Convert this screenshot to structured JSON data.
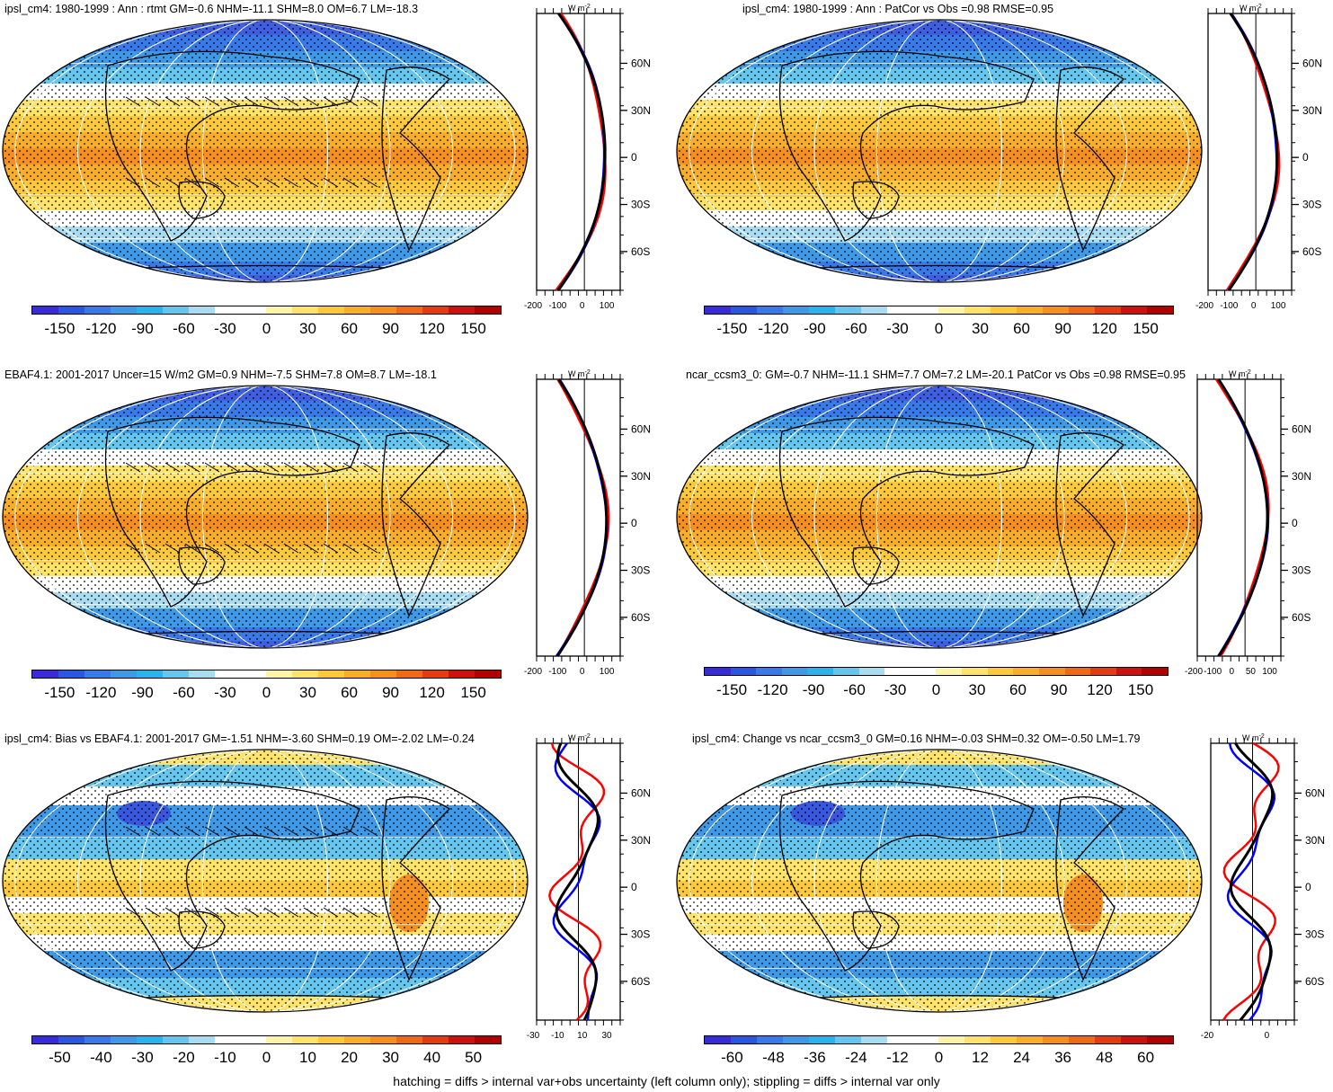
{
  "panels": [
    {
      "title": "ipsl_cm4: 1980-1999 : Ann : rtmt GM=-0.6 NHM=-11.1 SHM=8.0 OM=6.7 LM=-18.3",
      "colorbar": [
        "-150",
        "-120",
        "-90",
        "-60",
        "-30",
        "0",
        "30",
        "60",
        "90",
        "120",
        "150"
      ],
      "zonal_ticks": [
        "-200",
        "-100",
        "0",
        "100"
      ],
      "type": "mean",
      "hatched": true
    },
    {
      "title": "ipsl_cm4: 1980-1999 : Ann : PatCor vs Obs =0.98 RMSE=0.95",
      "colorbar": [
        "-150",
        "-120",
        "-90",
        "-60",
        "-30",
        "0",
        "30",
        "60",
        "90",
        "120",
        "150"
      ],
      "zonal_ticks": [
        "-200",
        "-100",
        "0",
        "100"
      ],
      "type": "mean",
      "hatched": false
    },
    {
      "title": "EBAF4.1: 2001-2017 Uncer=15 W/m2 GM=0.9 NHM=-7.5 SHM=7.8 OM=8.7 LM=-18.1",
      "colorbar": [
        "-150",
        "-120",
        "-90",
        "-60",
        "-30",
        "0",
        "30",
        "60",
        "90",
        "120",
        "150"
      ],
      "zonal_ticks": [
        "-200",
        "-100",
        "0",
        "100"
      ],
      "type": "mean",
      "hatched": true
    },
    {
      "title": "ncar_ccsm3_0: GM=-0.7 NHM=-11.1 SHM=7.7 OM=7.2 LM=-20.1 PatCor vs Obs =0.98 RMSE=0.95",
      "colorbar": [
        "-150",
        "-120",
        "-90",
        "-60",
        "-30",
        "0",
        "30",
        "60",
        "90",
        "120",
        "150"
      ],
      "zonal_ticks": [
        "-200",
        "-100",
        "0",
        "50",
        "100"
      ],
      "type": "mean",
      "hatched": false
    },
    {
      "title": "ipsl_cm4: Bias vs EBAF4.1: 2001-2017 GM=-1.51 NHM=-3.60 SHM=0.19 OM=-2.02 LM=-0.24",
      "colorbar": [
        "-50",
        "-40",
        "-30",
        "-20",
        "-10",
        "0",
        "10",
        "20",
        "30",
        "40",
        "50"
      ],
      "zonal_ticks": [
        "-30",
        "-10",
        "10",
        "30"
      ],
      "type": "diff",
      "hatched": true
    },
    {
      "title": "ipsl_cm4: Change vs ncar_ccsm3_0 GM=0.16 NHM=-0.03 SHM=0.32 OM=-0.50 LM=1.79",
      "colorbar": [
        "-60",
        "-48",
        "-36",
        "-24",
        "-12",
        "0",
        "12",
        "24",
        "36",
        "48",
        "60"
      ],
      "zonal_ticks": [
        "-20",
        "0"
      ],
      "type": "diff",
      "hatched": false
    }
  ],
  "lat_labels": [
    "60N",
    "30N",
    "0",
    "30S",
    "60S"
  ],
  "zonal_unit": "W m",
  "zonal_unit_exp": "-2",
  "colors": {
    "scale": [
      "#3a2bd8",
      "#2b57e0",
      "#3a7ae8",
      "#3f99e6",
      "#2bb3ee",
      "#66c6ee",
      "#a9dcf1",
      "#ffffff",
      "#ffffff",
      "#fdf4a8",
      "#fde36a",
      "#fcc93a",
      "#f9ae2a",
      "#f58f1e",
      "#ee6a17",
      "#e43b12",
      "#cd1010",
      "#b00000"
    ],
    "obs_line": "#ff0000",
    "model_line": "#0000ff",
    "mean_line": "#000000"
  },
  "footer": "hatching = diffs > internal var+obs uncertainty (left column only); stippling = diffs > internal var only"
}
